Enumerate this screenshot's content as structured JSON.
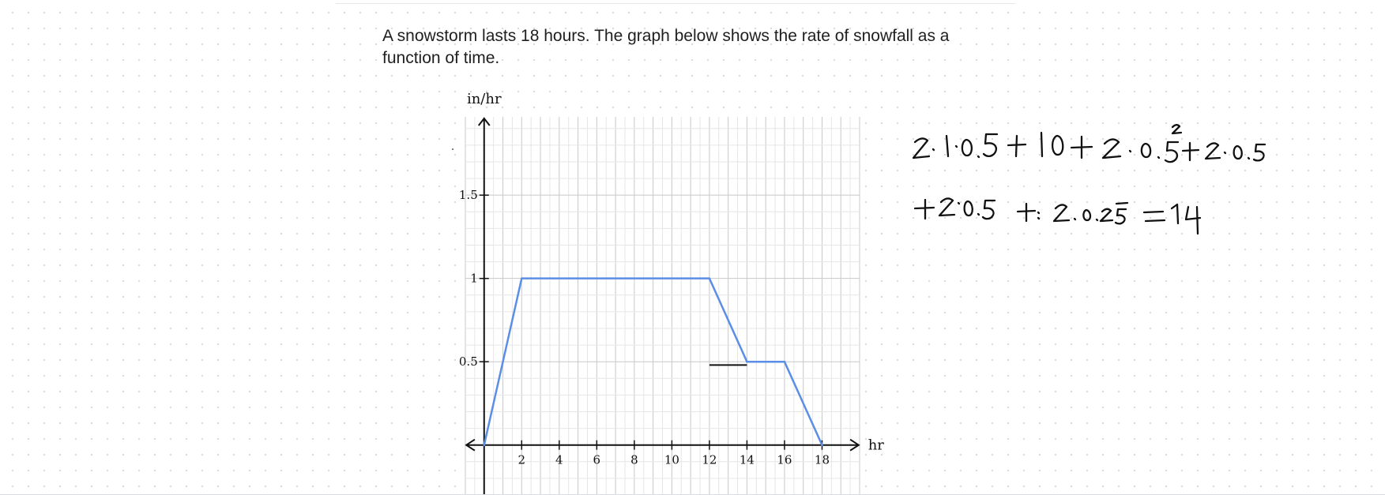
{
  "question": {
    "text": "A snowstorm lasts 18 hours. The graph below shows the rate of snowfall as a function of time."
  },
  "chart_data": {
    "type": "line",
    "title": "",
    "xlabel": "hr",
    "ylabel": "in/hr",
    "xlim": [
      -1,
      20
    ],
    "ylim": [
      -0.3,
      1.97
    ],
    "x_ticks": [
      2,
      4,
      6,
      8,
      10,
      12,
      14,
      16,
      18
    ],
    "y_ticks": [
      0.5,
      1,
      1.5
    ],
    "y_tick_labels": [
      "0.5",
      "1",
      "1.5"
    ],
    "grid": true,
    "series": [
      {
        "color": "#5b8ee6",
        "points": [
          [
            0,
            0
          ],
          [
            2,
            1
          ],
          [
            12,
            1
          ],
          [
            14,
            0.5
          ],
          [
            16,
            0.5
          ],
          [
            18,
            0
          ]
        ]
      }
    ],
    "annotation_segment": {
      "color": "#111111",
      "points": [
        [
          12,
          0.48
        ],
        [
          14,
          0.48
        ]
      ]
    }
  },
  "handwriting": {
    "line1": "2·1·0.5 + 10 + 2·0.5² + 2·0.5",
    "line2": "+ 2·0.5 +· 2·0.25 = 14"
  },
  "colors": {
    "series": "#5b8ee6",
    "grid_minor": "#e6e6e6",
    "grid_major": "#c8c8c8",
    "axis": "#111111"
  }
}
